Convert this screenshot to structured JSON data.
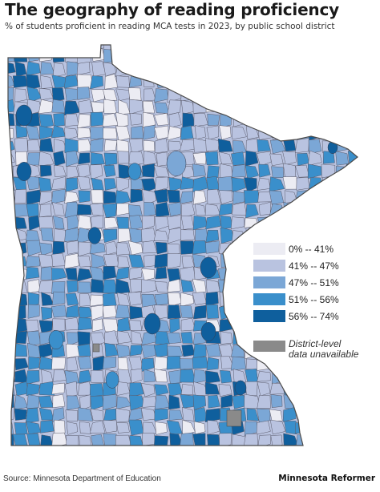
{
  "header": {
    "title": "The geography of reading proficiency",
    "subtitle": "% of students proficient in reading MCA tests in 2023, by public school district"
  },
  "legend": {
    "items": [
      {
        "label": "0% -- 41%",
        "color": "#ececf3"
      },
      {
        "label": "41% -- 47%",
        "color": "#b9c3e0"
      },
      {
        "label": "47% -- 51%",
        "color": "#7ba7d6"
      },
      {
        "label": "51% -- 56%",
        "color": "#3a8fcb"
      },
      {
        "label": "56% -- 74%",
        "color": "#0f5f9d"
      }
    ],
    "unavailable": {
      "line1": "District-level",
      "line2": "data unavailable",
      "color": "#8a8a8a"
    }
  },
  "map": {
    "region": "Minnesota",
    "boundary_color": "#4a4a4a"
  },
  "footer": {
    "source": "Source: Minnesota Department of Education",
    "brand": "Minnesota Reformer"
  }
}
